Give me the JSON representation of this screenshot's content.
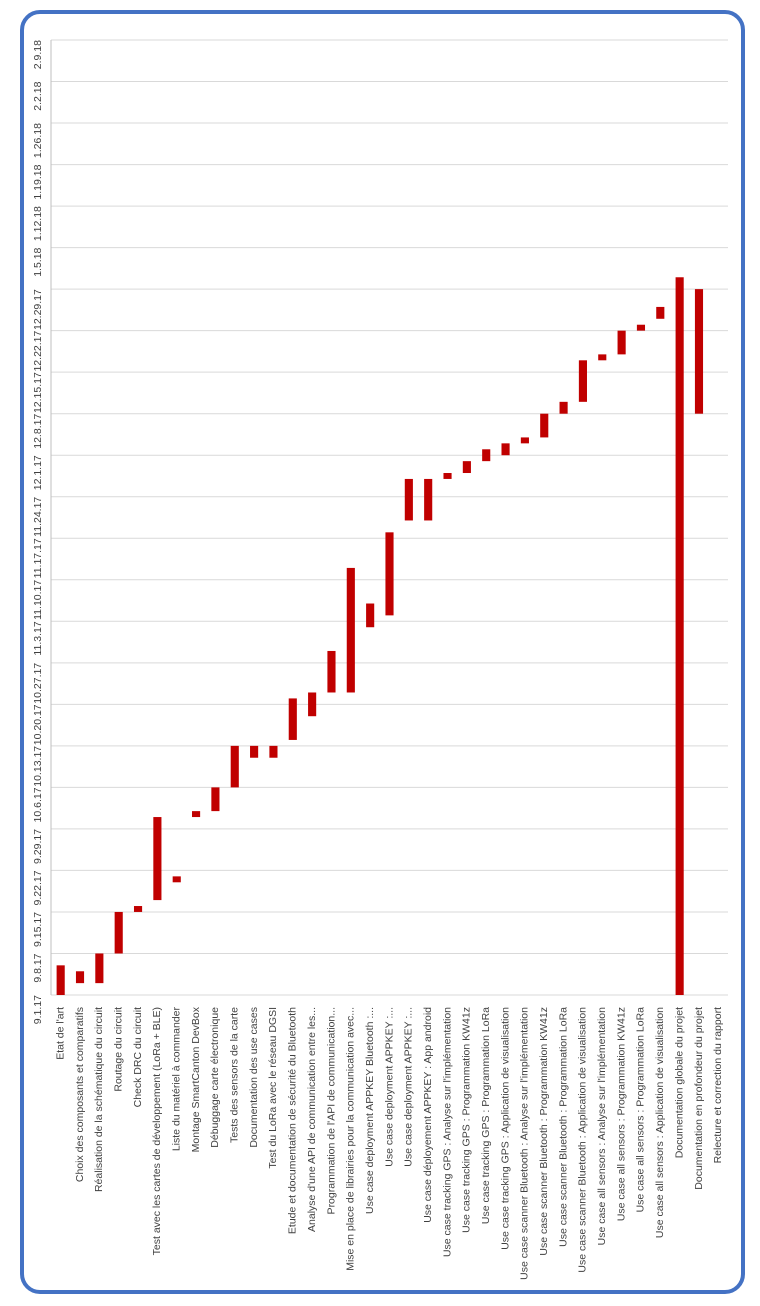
{
  "chart_data": {
    "type": "bar",
    "orientation": "rotated-gantt",
    "bar_color": "#C00000",
    "grid": true,
    "legend": "none",
    "x_axis_dates": [
      "9.1.17",
      "9.8.17",
      "9.15.17",
      "9.22.17",
      "9.29.17",
      "10.6.17",
      "10.13.17",
      "10.20.17",
      "10.27.17",
      "11.3.17",
      "11.10.17",
      "11.17.17",
      "11.24.17",
      "12.1.17",
      "12.8.17",
      "12.15.17",
      "12.22.17",
      "12.29.17",
      "1.5.18",
      "1.12.18",
      "1.19.18",
      "1.26.18",
      "2.2.18",
      "2.9.18"
    ],
    "tasks": [
      {
        "name": "Etat de l'art",
        "start": "2017-09-01",
        "end": "2017-09-06"
      },
      {
        "name": "Choix des composants et comparatifs",
        "start": "2017-09-03",
        "end": "2017-09-05"
      },
      {
        "name": "Réalisation de la schématique du circuit",
        "start": "2017-09-03",
        "end": "2017-09-08"
      },
      {
        "name": "Routage du circuit",
        "start": "2017-09-08",
        "end": "2017-09-15"
      },
      {
        "name": "Check DRC du circuit",
        "start": "2017-09-15",
        "end": "2017-09-16"
      },
      {
        "name": "Test avec les cartes de développement (LoRa + BLE)",
        "start": "2017-09-17",
        "end": "2017-10-01"
      },
      {
        "name": "Liste du matériel à commander",
        "start": "2017-09-20",
        "end": "2017-09-21"
      },
      {
        "name": "Montage SmartCanton DevBox",
        "start": "2017-10-01",
        "end": "2017-10-02"
      },
      {
        "name": "Débuggage carte électronique",
        "start": "2017-10-02",
        "end": "2017-10-06"
      },
      {
        "name": "Tests des sensors de la carte",
        "start": "2017-10-06",
        "end": "2017-10-13"
      },
      {
        "name": "Documentation des use cases",
        "start": "2017-10-11",
        "end": "2017-10-13"
      },
      {
        "name": "Test du LoRa avec le réseau DGSI",
        "start": "2017-10-11",
        "end": "2017-10-13"
      },
      {
        "name": "Etude et documentation de sécurité du Bluetooth",
        "start": "2017-10-14",
        "end": "2017-10-21"
      },
      {
        "name": "Analyse d'une API de communication entre les...",
        "start": "2017-10-18",
        "end": "2017-10-22"
      },
      {
        "name": "Programmation de l'API de communication...",
        "start": "2017-10-22",
        "end": "2017-10-29"
      },
      {
        "name": "Mise en place de librairies pour la communication avec...",
        "start": "2017-10-22",
        "end": "2017-11-12"
      },
      {
        "name": "Use case deployment APPKEY Bluetooth :...",
        "start": "2017-11-02",
        "end": "2017-11-06"
      },
      {
        "name": "Use case deployment APPKEY :...",
        "start": "2017-11-04",
        "end": "2017-11-18"
      },
      {
        "name": "Use case deployment APPKEY :...",
        "start": "2017-11-20",
        "end": "2017-11-27"
      },
      {
        "name": "Use case déployement APPKEY : App android",
        "start": "2017-11-20",
        "end": "2017-11-27"
      },
      {
        "name": "Use case tracking GPS : Analyse sur l'implémentation",
        "start": "2017-11-27",
        "end": "2017-11-28"
      },
      {
        "name": "Use case tracking GPS : Programmation KW41z",
        "start": "2017-11-28",
        "end": "2017-11-30"
      },
      {
        "name": "Use case tracking GPS : Programmation LoRa",
        "start": "2017-11-30",
        "end": "2017-12-02"
      },
      {
        "name": "Use case tracking GPS : Application de visualisation",
        "start": "2017-12-01",
        "end": "2017-12-03"
      },
      {
        "name": "Use case scanner Bluetooth : Analyse sur l'implémentation",
        "start": "2017-12-03",
        "end": "2017-12-04"
      },
      {
        "name": "Use case scanner Bluetooth : Programmation KW41z",
        "start": "2017-12-04",
        "end": "2017-12-08"
      },
      {
        "name": "Use case scanner Bluetooth : Programmation LoRa",
        "start": "2017-12-08",
        "end": "2017-12-10"
      },
      {
        "name": "Use case scanner Bluetooth : Application de visualisation",
        "start": "2017-12-10",
        "end": "2017-12-17"
      },
      {
        "name": "Use case all sensors : Analyse sur l'implémentation",
        "start": "2017-12-17",
        "end": "2017-12-18"
      },
      {
        "name": "Use case all sensors : Programmation KW41z",
        "start": "2017-12-18",
        "end": "2017-12-22"
      },
      {
        "name": "Use case all sensors : Programmation LoRa",
        "start": "2017-12-22",
        "end": "2017-12-23"
      },
      {
        "name": "Use case all sensors : Application de visualisation",
        "start": "2017-12-24",
        "end": "2017-12-26"
      },
      {
        "name": "Documentation globale du projet",
        "start": "2017-09-01",
        "end": "2017-12-31"
      },
      {
        "name": "Documentation en profondeur du projet",
        "start": "2017-12-08",
        "end": "2017-12-29"
      },
      {
        "name": "Relecture et correction du rapport",
        "start": "2017-12-30",
        "end": "2017-12-30"
      }
    ]
  }
}
